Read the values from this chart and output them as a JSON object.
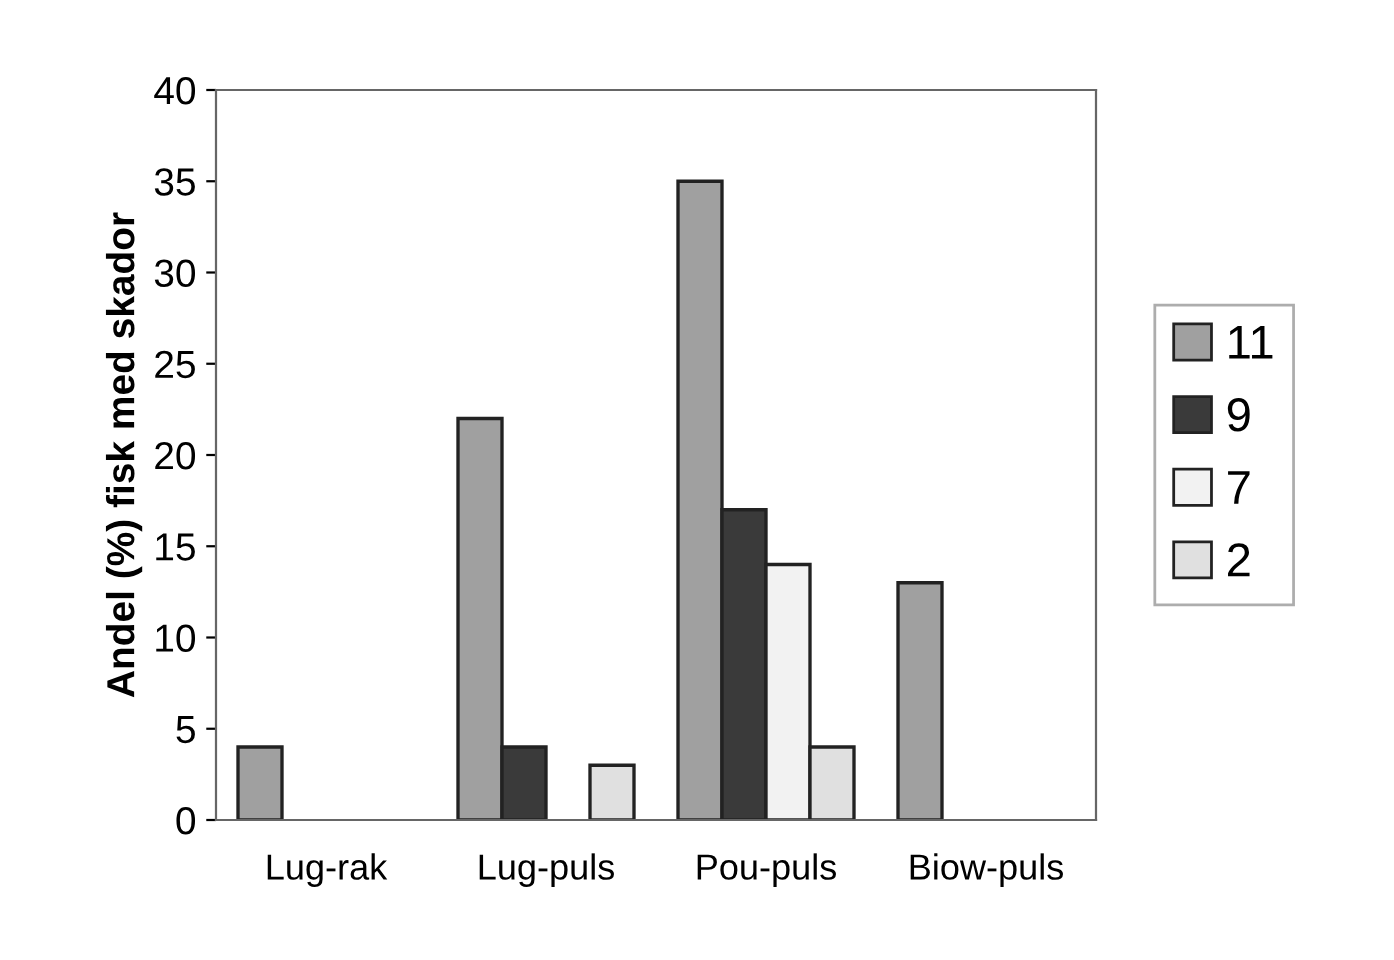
{
  "chart_data": {
    "type": "bar",
    "ylabel": "Andel (%) fisk med skador",
    "categories": [
      "Lug-rak",
      "Lug-puls",
      "Pou-puls",
      "Biow-puls"
    ],
    "series": [
      {
        "name": "11",
        "color": "#a0a0a0",
        "values": [
          4,
          22,
          35,
          13
        ]
      },
      {
        "name": "9",
        "color": "#3a3a3a",
        "values": [
          null,
          4,
          17,
          null
        ]
      },
      {
        "name": "7",
        "color": "#f2f2f2",
        "values": [
          null,
          null,
          14,
          null
        ]
      },
      {
        "name": "2",
        "color": "#e0e0e0",
        "values": [
          null,
          3,
          4,
          null
        ]
      }
    ],
    "ylim": [
      0,
      40
    ],
    "yticks": [
      0,
      5,
      10,
      15,
      20,
      25,
      30,
      35,
      40
    ],
    "grid": false,
    "legend": "right"
  }
}
